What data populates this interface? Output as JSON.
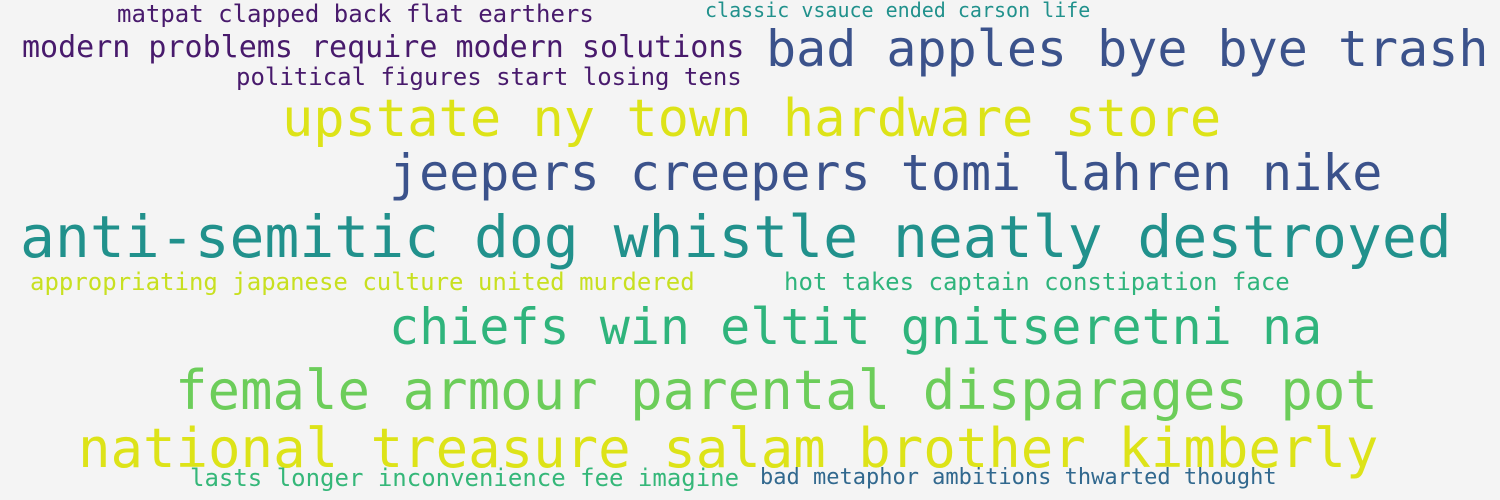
{
  "words": [
    {
      "id": "phrase-1",
      "text": "matpat clapped back flat earthers",
      "color": "#481a6c"
    },
    {
      "id": "phrase-2",
      "text": "classic vsauce ended carson life",
      "color": "#21918c"
    },
    {
      "id": "phrase-3",
      "text": "modern problems require modern solutions",
      "color": "#481a6c"
    },
    {
      "id": "phrase-4",
      "text": "bad apples bye bye trash",
      "color": "#3b528b"
    },
    {
      "id": "phrase-5",
      "text": "political figures start losing tens",
      "color": "#481a6c"
    },
    {
      "id": "phrase-6",
      "text": "upstate ny town hardware store",
      "color": "#dde318"
    },
    {
      "id": "phrase-7",
      "text": "jeepers creepers tomi lahren nike",
      "color": "#3b528b"
    },
    {
      "id": "phrase-8",
      "text": "anti-semitic dog whistle neatly destroyed",
      "color": "#21918c"
    },
    {
      "id": "phrase-9",
      "text": "appropriating japanese culture united murdered",
      "color": "#c8e020"
    },
    {
      "id": "phrase-10",
      "text": "hot takes captain constipation face",
      "color": "#2fb47c"
    },
    {
      "id": "phrase-11",
      "text": "chiefs win eltit gnitseretni na",
      "color": "#2fb47c"
    },
    {
      "id": "phrase-12",
      "text": "female armour parental disparages pot",
      "color": "#6ccd5a"
    },
    {
      "id": "phrase-13",
      "text": "national treasure salam brother kimberly",
      "color": "#dde318"
    },
    {
      "id": "phrase-14",
      "text": "lasts longer inconvenience fee imagine",
      "color": "#35b779"
    },
    {
      "id": "phrase-15",
      "text": "bad metaphor ambitions thwarted thought",
      "color": "#31688e"
    }
  ]
}
